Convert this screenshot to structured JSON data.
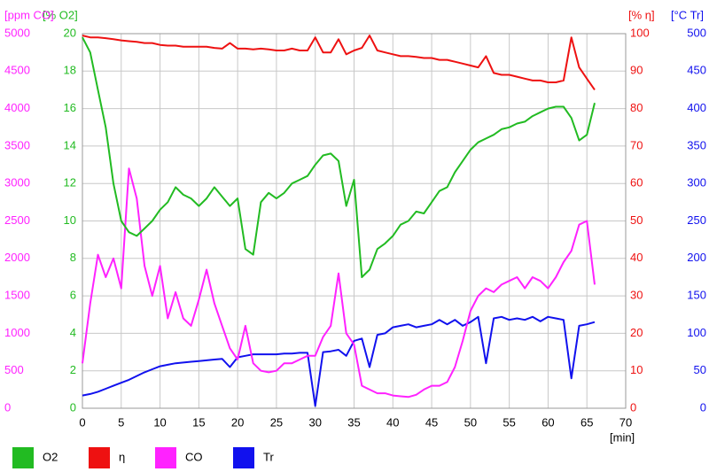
{
  "chart_data": {
    "type": "line",
    "x_label": "[min]",
    "xlim": [
      0,
      70
    ],
    "xticks": [
      0,
      5,
      10,
      15,
      20,
      25,
      30,
      35,
      40,
      45,
      50,
      55,
      60,
      65,
      70
    ],
    "grid": true,
    "x": [
      0,
      1,
      2,
      3,
      4,
      5,
      6,
      7,
      8,
      9,
      10,
      11,
      12,
      13,
      14,
      15,
      16,
      17,
      18,
      19,
      20,
      21,
      22,
      23,
      24,
      25,
      26,
      27,
      28,
      29,
      30,
      31,
      32,
      33,
      34,
      35,
      36,
      37,
      38,
      39,
      40,
      41,
      42,
      43,
      44,
      45,
      46,
      47,
      48,
      49,
      50,
      51,
      52,
      53,
      54,
      55,
      56,
      57,
      58,
      59,
      60,
      61,
      62,
      63,
      64,
      65,
      66
    ],
    "series": [
      {
        "name": "O2",
        "color": "#22bb22",
        "axis_label": "[% O2]",
        "axis_position": "left-inner",
        "ylim": [
          0,
          20
        ],
        "yticks": [
          0,
          2,
          4,
          6,
          8,
          10,
          12,
          14,
          16,
          18,
          20
        ],
        "values": [
          19.8,
          19,
          17,
          15,
          12,
          10,
          9.4,
          9.2,
          9.6,
          10,
          10.6,
          11,
          11.8,
          11.4,
          11.2,
          10.8,
          11.2,
          11.8,
          11.3,
          10.8,
          11.2,
          8.5,
          8.2,
          11,
          11.5,
          11.2,
          11.5,
          12,
          12.2,
          12.4,
          13,
          13.5,
          13.6,
          13.2,
          10.8,
          12.2,
          7,
          7.4,
          8.5,
          8.8,
          9.2,
          9.8,
          10,
          10.5,
          10.4,
          11,
          11.6,
          11.8,
          12.6,
          13.2,
          13.8,
          14.2,
          14.4,
          14.6,
          14.9,
          15,
          15.2,
          15.3,
          15.6,
          15.8,
          16,
          16.1,
          16.1,
          15.5,
          14.3,
          14.6,
          16.3
        ]
      },
      {
        "name": "η",
        "color": "#ee1111",
        "axis_label": "[% η]",
        "axis_position": "right-inner",
        "ylim": [
          0,
          100
        ],
        "yticks": [
          0,
          10,
          20,
          30,
          40,
          50,
          60,
          70,
          80,
          90,
          100
        ],
        "values": [
          99.5,
          99,
          99,
          98.8,
          98.5,
          98.2,
          98,
          97.8,
          97.5,
          97.5,
          97,
          96.8,
          96.8,
          96.5,
          96.5,
          96.5,
          96.5,
          96.2,
          96,
          97.5,
          96,
          96,
          95.8,
          96,
          95.8,
          95.5,
          95.5,
          96,
          95.5,
          95.5,
          99,
          95,
          95,
          98.5,
          94.5,
          95.5,
          96.2,
          99.5,
          95.5,
          95,
          94.5,
          94,
          94,
          93.8,
          93.5,
          93.5,
          93,
          93,
          92.5,
          92,
          91.5,
          91,
          94,
          89.5,
          89,
          89,
          88.5,
          88,
          87.5,
          87.5,
          87,
          87,
          87.5,
          99,
          91,
          88,
          85
        ]
      },
      {
        "name": "CO",
        "color": "#ff22ff",
        "axis_label": "[ppm CO]",
        "axis_position": "left-outer",
        "ylim": [
          0,
          5000
        ],
        "yticks": [
          0,
          500,
          1000,
          1500,
          2000,
          2500,
          3000,
          3500,
          4000,
          4500,
          5000
        ],
        "values": [
          600,
          1400,
          2050,
          1750,
          2000,
          1600,
          3200,
          2800,
          1900,
          1500,
          1900,
          1200,
          1550,
          1200,
          1100,
          1450,
          1850,
          1400,
          1100,
          800,
          650,
          1100,
          600,
          500,
          480,
          500,
          600,
          600,
          650,
          700,
          700,
          950,
          1100,
          1800,
          1000,
          850,
          300,
          250,
          200,
          200,
          170,
          160,
          150,
          180,
          250,
          300,
          300,
          350,
          550,
          900,
          1300,
          1500,
          1600,
          1550,
          1650,
          1700,
          1750,
          1600,
          1750,
          1700,
          1600,
          1750,
          1950,
          2100,
          2450,
          2500,
          1650
        ]
      },
      {
        "name": "Tr",
        "color": "#1111ee",
        "axis_label": "[°C Tr]",
        "axis_position": "right-outer",
        "ylim": [
          0,
          500
        ],
        "yticks": [
          0,
          50,
          100,
          150,
          200,
          250,
          300,
          350,
          400,
          450,
          500
        ],
        "values": [
          17,
          19,
          22,
          26,
          30,
          34,
          38,
          43,
          48,
          52,
          56,
          58,
          60,
          61,
          62,
          63,
          64,
          65,
          66,
          55,
          68,
          70,
          72,
          72,
          72,
          72,
          73,
          73,
          74,
          74,
          3,
          75,
          76,
          78,
          70,
          90,
          93,
          55,
          98,
          100,
          108,
          110,
          112,
          108,
          110,
          112,
          118,
          112,
          118,
          110,
          115,
          122,
          60,
          120,
          122,
          118,
          120,
          118,
          122,
          116,
          122,
          120,
          118,
          40,
          110,
          112,
          115
        ]
      }
    ]
  }
}
